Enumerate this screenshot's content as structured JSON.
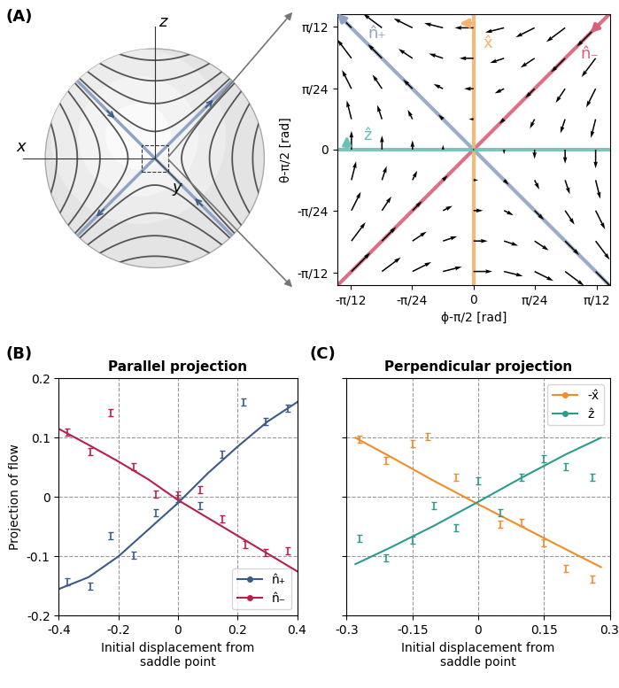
{
  "panel_labels": [
    "(A)",
    "(B)",
    "(C)"
  ],
  "sphere": {
    "axis_labels": [
      "x",
      "y",
      "z"
    ]
  },
  "chart_data": [
    {
      "type": "quiver",
      "xlabel": "ϕ-π/2 [rad]",
      "ylabel": "θ-π/2 [rad]",
      "xlim": [
        -0.29,
        0.29
      ],
      "ylim": [
        -0.29,
        0.29
      ],
      "xticks": [
        {
          "value": -0.2618,
          "label": "-π/12"
        },
        {
          "value": -0.1309,
          "label": "-π/24"
        },
        0,
        {
          "value": 0.1309,
          "label": "π/24"
        },
        {
          "value": 0.2618,
          "label": "π/12"
        }
      ],
      "yticks": [
        {
          "value": -0.2618,
          "label": "-π/12"
        },
        {
          "value": -0.1309,
          "label": "-π/24"
        },
        0,
        {
          "value": 0.1309,
          "label": "π/24"
        },
        {
          "value": 0.2618,
          "label": "π/12"
        }
      ],
      "field": {
        "x": [
          -0.26,
          -0.195,
          -0.13,
          -0.065,
          0,
          0.065,
          0.13,
          0.195,
          0.26
        ],
        "y": [
          -0.26,
          -0.195,
          -0.13,
          -0.065,
          0,
          0.065,
          0.13,
          0.195,
          0.26
        ],
        "u": [
          [
            0.26,
            0.26,
            0.26,
            0.26,
            0.26,
            0.26,
            0.26,
            0.26,
            0.26
          ],
          [
            0.195,
            0.195,
            0.195,
            0.195,
            0.195,
            0.195,
            0.195,
            0.195,
            0.195
          ],
          [
            0.13,
            0.13,
            0.13,
            0.13,
            0.13,
            0.13,
            0.13,
            0.13,
            0.13
          ],
          [
            0.065,
            0.065,
            0.065,
            0.065,
            0.065,
            0.065,
            0.065,
            0.065,
            0.065
          ],
          [
            0,
            0,
            0,
            0,
            0,
            0,
            0,
            0,
            0
          ],
          [
            -0.065,
            -0.065,
            -0.065,
            -0.065,
            -0.065,
            -0.065,
            -0.065,
            -0.065,
            -0.065
          ],
          [
            -0.13,
            -0.13,
            -0.13,
            -0.13,
            -0.13,
            -0.13,
            -0.13,
            -0.13,
            -0.13
          ],
          [
            -0.195,
            -0.195,
            -0.195,
            -0.195,
            -0.195,
            -0.195,
            -0.195,
            -0.195,
            -0.195
          ],
          [
            -0.26,
            -0.26,
            -0.26,
            -0.26,
            -0.26,
            -0.26,
            -0.26,
            -0.26,
            -0.26
          ]
        ],
        "v": [
          [
            0.26,
            0.195,
            0.13,
            0.065,
            0,
            -0.065,
            -0.13,
            -0.195,
            -0.26
          ],
          [
            0.26,
            0.195,
            0.13,
            0.065,
            0,
            -0.065,
            -0.13,
            -0.195,
            -0.26
          ],
          [
            0.26,
            0.195,
            0.13,
            0.065,
            0,
            -0.065,
            -0.13,
            -0.195,
            -0.26
          ],
          [
            0.26,
            0.195,
            0.13,
            0.065,
            0,
            -0.065,
            -0.13,
            -0.195,
            -0.26
          ],
          [
            0.26,
            0.195,
            0.13,
            0.065,
            0,
            -0.065,
            -0.13,
            -0.195,
            -0.26
          ],
          [
            0.26,
            0.195,
            0.13,
            0.065,
            0,
            -0.065,
            -0.13,
            -0.195,
            -0.26
          ],
          [
            0.26,
            0.195,
            0.13,
            0.065,
            0,
            -0.065,
            -0.13,
            -0.195,
            -0.26
          ],
          [
            0.26,
            0.195,
            0.13,
            0.065,
            0,
            -0.065,
            -0.13,
            -0.195,
            -0.26
          ],
          [
            0.26,
            0.195,
            0.13,
            0.065,
            0,
            -0.065,
            -0.13,
            -0.195,
            -0.26
          ]
        ]
      },
      "directions": [
        {
          "name": "n̂₊",
          "color": "#8fa3c4",
          "line": [
            -1,
            1
          ],
          "arrow": [
            -1,
            1
          ]
        },
        {
          "name": "n̂₋",
          "color": "#d9607a",
          "line": [
            1,
            1
          ],
          "arrow": [
            -1,
            -1
          ]
        },
        {
          "name": "x̂",
          "color": "#f6b26b",
          "line": [
            0,
            1
          ],
          "arrow": [
            -1,
            0
          ]
        },
        {
          "name": "ẑ",
          "color": "#6cc0b5",
          "line": [
            -1,
            0
          ],
          "arrow": [
            0,
            1
          ]
        }
      ]
    },
    {
      "type": "scatter",
      "title": "Parallel projection",
      "xlabel": "Initial displacement from\nsaddle point",
      "ylabel": "Projection of flow",
      "xlim": [
        -0.4,
        0.4
      ],
      "ylim": [
        -0.2,
        0.2
      ],
      "xticks": [
        -0.4,
        -0.2,
        0,
        0.2,
        0.4
      ],
      "yticks": [
        -0.2,
        -0.1,
        0,
        0.1,
        0.2
      ],
      "grid": true,
      "legend": "lower right",
      "series": [
        {
          "name": "n̂₊",
          "color": "#3b5b8a",
          "marker": "o",
          "x": [
            -0.37,
            -0.295,
            -0.225,
            -0.15,
            -0.075,
            0,
            0.075,
            0.15,
            0.22,
            0.295,
            0.37
          ],
          "values": [
            -0.143,
            -0.15,
            -0.065,
            -0.098,
            -0.027,
            -0.002,
            -0.015,
            0.072,
            0.16,
            0.127,
            0.15
          ],
          "errors": [
            0.006,
            0.006,
            0.006,
            0.006,
            0.006,
            0.006,
            0.006,
            0.006,
            0.006,
            0.006,
            0.006
          ],
          "fit_x": [
            -0.4,
            -0.3,
            -0.2,
            -0.1,
            0,
            0.1,
            0.2,
            0.3,
            0.4
          ],
          "fit_values": [
            -0.155,
            -0.135,
            -0.1,
            -0.055,
            -0.01,
            0.04,
            0.085,
            0.127,
            0.16
          ]
        },
        {
          "name": "n̂₋",
          "color": "#b7204a",
          "marker": "o",
          "x": [
            -0.37,
            -0.295,
            -0.225,
            -0.15,
            -0.075,
            0,
            0.075,
            0.15,
            0.225,
            0.295,
            0.37
          ],
          "values": [
            0.11,
            0.077,
            0.142,
            0.052,
            0.005,
            0.003,
            0.012,
            -0.037,
            -0.08,
            -0.093,
            -0.09
          ],
          "errors": [
            0.006,
            0.006,
            0.006,
            0.006,
            0.006,
            0.006,
            0.006,
            0.006,
            0.006,
            0.006,
            0.006
          ],
          "fit_x": [
            -0.4,
            -0.3,
            -0.2,
            -0.1,
            0,
            0.1,
            0.2,
            0.3,
            0.4
          ],
          "fit_values": [
            0.115,
            0.088,
            0.06,
            0.03,
            -0.005,
            -0.035,
            -0.065,
            -0.095,
            -0.125
          ]
        }
      ]
    },
    {
      "type": "scatter",
      "title": "Perpendicular projection",
      "xlabel": "Initial displacement from\nsaddle point",
      "xlim": [
        -0.3,
        0.3
      ],
      "ylim": [
        -0.2,
        0.2
      ],
      "xticks": [
        -0.3,
        -0.15,
        0,
        0.15,
        0.3
      ],
      "yticks": [
        -0.2,
        -0.1,
        0,
        0.1,
        0.2
      ],
      "tick_labels": "x",
      "grid": true,
      "legend": "upper right",
      "series": [
        {
          "name": "-x̂",
          "color": "#f28c28",
          "marker": "o",
          "x": [
            -0.27,
            -0.21,
            -0.15,
            -0.115,
            -0.05,
            0.05,
            0.1,
            0.15,
            0.2,
            0.26
          ],
          "values": [
            0.097,
            0.062,
            0.09,
            0.102,
            0.033,
            -0.045,
            -0.043,
            -0.077,
            -0.12,
            -0.138
          ],
          "errors": [
            0.006,
            0.006,
            0.006,
            0.006,
            0.006,
            0.006,
            0.006,
            0.006,
            0.006,
            0.006
          ],
          "fit_x": [
            -0.28,
            -0.2,
            -0.1,
            0,
            0.1,
            0.2,
            0.28
          ],
          "fit_values": [
            0.1,
            0.068,
            0.027,
            -0.012,
            -0.05,
            -0.088,
            -0.118
          ]
        },
        {
          "name": "ẑ",
          "color": "#2b9c8c",
          "marker": "o",
          "x": [
            -0.27,
            -0.21,
            -0.15,
            -0.1,
            -0.05,
            0,
            0.05,
            0.1,
            0.15,
            0.2,
            0.26
          ],
          "values": [
            -0.07,
            -0.102,
            -0.073,
            -0.015,
            -0.052,
            0.027,
            -0.027,
            0.033,
            0.065,
            0.052,
            0.033
          ],
          "errors": [
            0.006,
            0.006,
            0.006,
            0.006,
            0.006,
            0.006,
            0.006,
            0.006,
            0.006,
            0.006,
            0.006
          ],
          "fit_x": [
            -0.28,
            -0.2,
            -0.1,
            0,
            0.1,
            0.2,
            0.28
          ],
          "fit_values": [
            -0.113,
            -0.085,
            -0.048,
            -0.008,
            0.033,
            0.072,
            0.1
          ]
        }
      ]
    }
  ]
}
